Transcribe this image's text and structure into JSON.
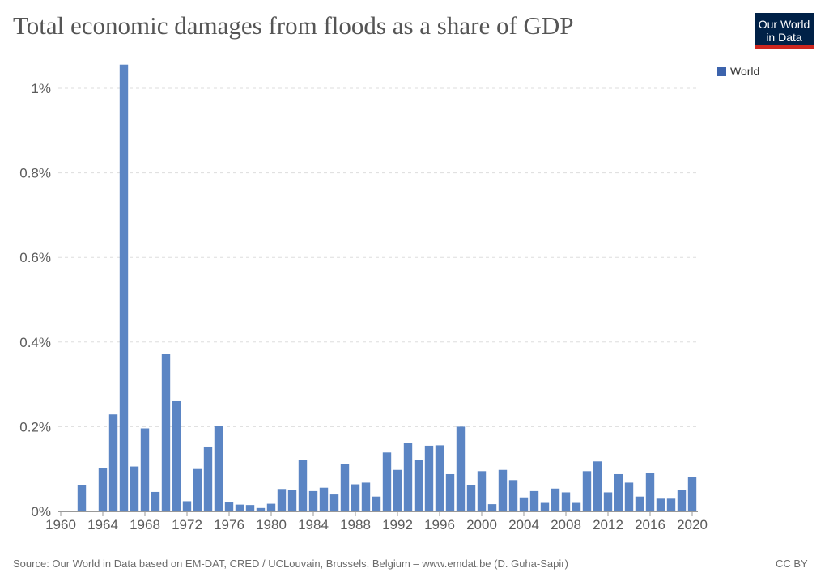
{
  "title": "Total economic damages from floods as a share of GDP",
  "logo": {
    "line1": "Our World",
    "line2": "in Data"
  },
  "footer": {
    "source": "Source: Our World in Data based on EM-DAT, CRED / UCLouvain, Brussels, Belgium – www.emdat.be (D. Guha-Sapir)",
    "license": "CC BY"
  },
  "colors": {
    "bar": "#5b85c4",
    "legend": "#3c63ac",
    "logo_bg": "#002147",
    "logo_accent": "#ce261e"
  },
  "chart_data": {
    "type": "bar",
    "title": "Total economic damages from floods as a share of GDP",
    "xlabel": "",
    "ylabel": "",
    "legend": {
      "entries": [
        "World"
      ],
      "position": "top-right"
    },
    "grid": "horizontal-dashed",
    "xlim": [
      1960,
      2020
    ],
    "ylim": [
      0,
      1.0
    ],
    "x_ticks": [
      "1960",
      "1964",
      "1968",
      "1972",
      "1976",
      "1980",
      "1984",
      "1988",
      "1992",
      "1996",
      "2000",
      "2004",
      "2008",
      "2012",
      "2016",
      "2020"
    ],
    "y_ticks": [
      {
        "value": 0,
        "label": "0%"
      },
      {
        "value": 0.2,
        "label": "0.2%"
      },
      {
        "value": 0.4,
        "label": "0.4%"
      },
      {
        "value": 0.6,
        "label": "0.6%"
      },
      {
        "value": 0.8,
        "label": "0.8%"
      },
      {
        "value": 1.0,
        "label": "1%"
      }
    ],
    "series": [
      {
        "name": "World",
        "x": [
          1962,
          1964,
          1965,
          1966,
          1967,
          1968,
          1969,
          1970,
          1971,
          1972,
          1973,
          1974,
          1975,
          1976,
          1977,
          1978,
          1979,
          1980,
          1981,
          1982,
          1983,
          1984,
          1985,
          1986,
          1987,
          1988,
          1989,
          1990,
          1991,
          1992,
          1993,
          1994,
          1995,
          1996,
          1997,
          1998,
          1999,
          2000,
          2001,
          2002,
          2003,
          2004,
          2005,
          2006,
          2007,
          2008,
          2009,
          2010,
          2011,
          2012,
          2013,
          2014,
          2015,
          2016,
          2017,
          2018,
          2019,
          2020
        ],
        "values": [
          0.062,
          0.102,
          0.229,
          1.056,
          0.106,
          0.196,
          0.046,
          0.372,
          0.262,
          0.024,
          0.1,
          0.153,
          0.202,
          0.021,
          0.016,
          0.015,
          0.008,
          0.018,
          0.053,
          0.05,
          0.122,
          0.048,
          0.056,
          0.04,
          0.112,
          0.064,
          0.068,
          0.035,
          0.139,
          0.098,
          0.161,
          0.121,
          0.155,
          0.156,
          0.088,
          0.2,
          0.062,
          0.095,
          0.017,
          0.098,
          0.074,
          0.033,
          0.048,
          0.02,
          0.054,
          0.045,
          0.02,
          0.095,
          0.118,
          0.045,
          0.088,
          0.068,
          0.035,
          0.091,
          0.03,
          0.03,
          0.051,
          0.081
        ]
      }
    ]
  }
}
